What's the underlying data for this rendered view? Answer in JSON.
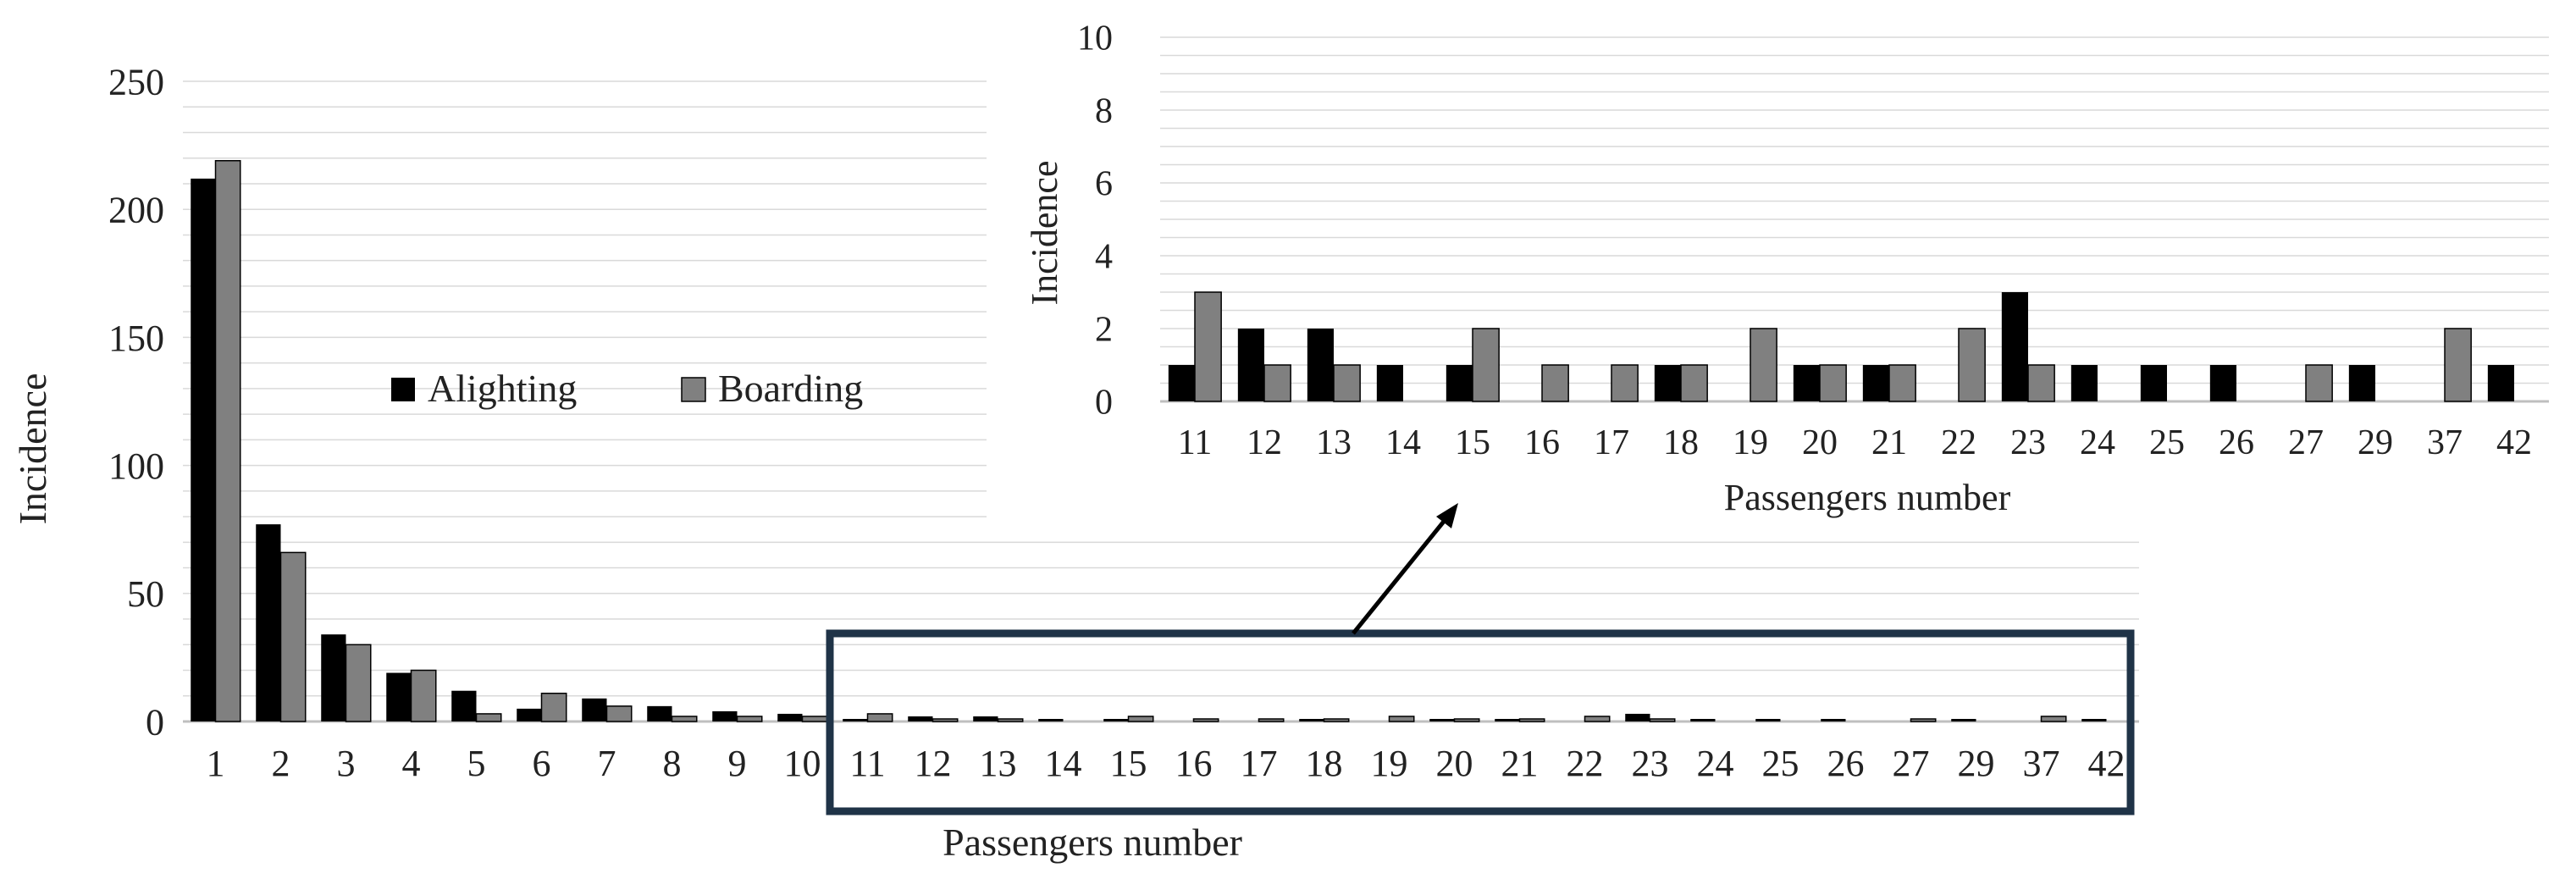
{
  "colors": {
    "alighting": "#000000",
    "boarding": "#808080",
    "grid": "#d9d9d9",
    "axis": "#bfbfbf",
    "highlight_box": "#1f3347",
    "text": "#222222"
  },
  "legend": {
    "alighting": "Alighting",
    "boarding": "Boarding",
    "placement": "center-left"
  },
  "chart_data": [
    {
      "type": "bar",
      "title": "",
      "xlabel": "Passengers number",
      "ylabel": "Incidence",
      "ylim": [
        0,
        250
      ],
      "yticks": [
        0,
        50,
        100,
        150,
        200,
        250
      ],
      "grid": "horizontal",
      "categories": [
        "1",
        "2",
        "3",
        "4",
        "5",
        "6",
        "7",
        "8",
        "9",
        "10",
        "11",
        "12",
        "13",
        "14",
        "15",
        "16",
        "17",
        "18",
        "19",
        "20",
        "21",
        "22",
        "23",
        "24",
        "25",
        "26",
        "27",
        "29",
        "37",
        "42"
      ],
      "series": [
        {
          "name": "Alighting",
          "values": [
            212,
            77,
            34,
            19,
            12,
            5,
            9,
            6,
            4,
            3,
            1,
            2,
            2,
            1,
            1,
            0,
            0,
            1,
            0,
            1,
            1,
            0,
            3,
            1,
            1,
            1,
            0,
            1,
            0,
            1
          ]
        },
        {
          "name": "Boarding",
          "values": [
            219,
            66,
            30,
            20,
            3,
            11,
            6,
            2,
            2,
            2,
            3,
            1,
            1,
            0,
            2,
            1,
            1,
            1,
            2,
            1,
            1,
            2,
            1,
            0,
            0,
            0,
            1,
            0,
            2,
            0
          ]
        }
      ],
      "highlight_range": [
        "11",
        "42"
      ]
    },
    {
      "type": "bar",
      "title": "",
      "xlabel": "Passengers number",
      "ylabel": "Incidence",
      "ylim": [
        0,
        10
      ],
      "yticks": [
        0,
        2,
        4,
        6,
        8,
        10
      ],
      "grid": "horizontal",
      "categories": [
        "11",
        "12",
        "13",
        "14",
        "15",
        "16",
        "17",
        "18",
        "19",
        "20",
        "21",
        "22",
        "23",
        "24",
        "25",
        "26",
        "27",
        "29",
        "37",
        "42"
      ],
      "series": [
        {
          "name": "Alighting",
          "values": [
            1,
            2,
            2,
            1,
            1,
            0,
            0,
            1,
            0,
            1,
            1,
            0,
            3,
            1,
            1,
            1,
            0,
            1,
            0,
            1
          ]
        },
        {
          "name": "Boarding",
          "values": [
            3,
            1,
            1,
            0,
            2,
            1,
            1,
            1,
            2,
            1,
            1,
            2,
            1,
            0,
            0,
            0,
            1,
            0,
            2,
            0
          ]
        }
      ]
    }
  ]
}
